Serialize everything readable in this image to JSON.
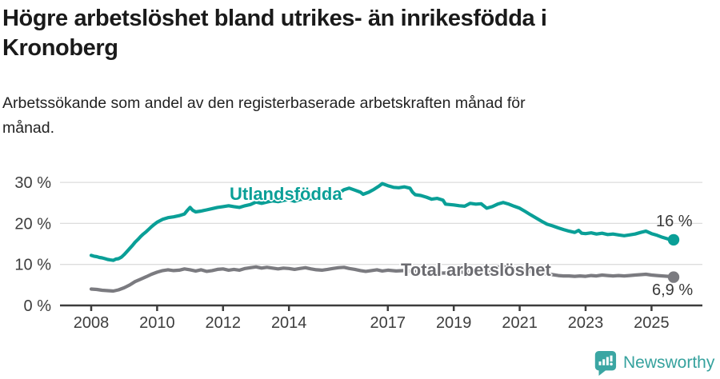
{
  "header": {
    "title": "Högre arbetslöshet bland utrikes- än inrikesfödda i\nKronoberg",
    "subtitle": "Arbetssökande som andel av den registerbaserade arbetskraften månad för\nmånad."
  },
  "footer": {
    "brand": "Newsworthy",
    "logo_icon": "newsworthy-pin-barchart-icon",
    "brand_color": "#36a29e"
  },
  "chart_data": {
    "type": "line",
    "title": "Högre arbetslöshet bland utrikes- än inrikesfödda i Kronoberg",
    "subtitle": "Arbetssökande som andel av den registerbaserade arbetskraften månad för månad.",
    "grid": true,
    "legend_position": "inline-labels",
    "x_axis": {
      "ticks": [
        2008,
        2010,
        2012,
        2014,
        2017,
        2019,
        2021,
        2023,
        2025
      ],
      "labels": [
        "2008",
        "2010",
        "2012",
        "2014",
        "2017",
        "2019",
        "2021",
        "2023",
        "2025"
      ],
      "range": [
        2007.1,
        2026.5
      ]
    },
    "y_axis": {
      "ticks": [
        0,
        10,
        20,
        30
      ],
      "labels": [
        "0 %",
        "10 %",
        "20 %",
        "30 %"
      ],
      "range": [
        0,
        31
      ]
    },
    "colors": {
      "grid": "#dcdcdc",
      "axis": "#3c3c3c",
      "tick_text": "#3d3d3d"
    },
    "series": [
      {
        "id": "utlandsfodda",
        "name": "Utlandsfödda",
        "color": "#0a9f97",
        "end_label": "16 %",
        "end_value": 16.0,
        "points": [
          [
            2008.0,
            12.2
          ],
          [
            2008.08,
            12.0
          ],
          [
            2008.17,
            11.9
          ],
          [
            2008.25,
            11.7
          ],
          [
            2008.33,
            11.6
          ],
          [
            2008.42,
            11.4
          ],
          [
            2008.5,
            11.2
          ],
          [
            2008.58,
            11.1
          ],
          [
            2008.67,
            11.0
          ],
          [
            2008.75,
            11.3
          ],
          [
            2008.83,
            11.4
          ],
          [
            2008.92,
            11.8
          ],
          [
            2009.0,
            12.4
          ],
          [
            2009.08,
            13.1
          ],
          [
            2009.17,
            13.9
          ],
          [
            2009.25,
            14.6
          ],
          [
            2009.33,
            15.4
          ],
          [
            2009.42,
            16.1
          ],
          [
            2009.5,
            16.8
          ],
          [
            2009.58,
            17.4
          ],
          [
            2009.67,
            18.0
          ],
          [
            2009.75,
            18.6
          ],
          [
            2009.83,
            19.2
          ],
          [
            2009.92,
            19.8
          ],
          [
            2010.0,
            20.3
          ],
          [
            2010.17,
            21.0
          ],
          [
            2010.33,
            21.4
          ],
          [
            2010.5,
            21.6
          ],
          [
            2010.67,
            21.9
          ],
          [
            2010.83,
            22.3
          ],
          [
            2010.92,
            23.2
          ],
          [
            2011.0,
            23.9
          ],
          [
            2011.08,
            23.2
          ],
          [
            2011.17,
            22.8
          ],
          [
            2011.33,
            23.0
          ],
          [
            2011.5,
            23.3
          ],
          [
            2011.67,
            23.6
          ],
          [
            2011.83,
            23.9
          ],
          [
            2012.0,
            24.1
          ],
          [
            2012.17,
            24.3
          ],
          [
            2012.33,
            24.1
          ],
          [
            2012.5,
            23.9
          ],
          [
            2012.67,
            24.3
          ],
          [
            2012.83,
            24.6
          ],
          [
            2013.0,
            25.2
          ],
          [
            2013.17,
            24.9
          ],
          [
            2013.33,
            25.2
          ],
          [
            2013.5,
            25.5
          ],
          [
            2013.67,
            25.3
          ],
          [
            2013.83,
            25.6
          ],
          [
            2014.0,
            25.8
          ],
          [
            2014.17,
            25.4
          ],
          [
            2014.33,
            25.8
          ],
          [
            2014.5,
            26.0
          ],
          [
            2014.67,
            26.0
          ],
          [
            2014.83,
            26.2
          ],
          [
            2015.0,
            26.4
          ],
          [
            2015.25,
            26.7
          ],
          [
            2015.5,
            27.3
          ],
          [
            2015.67,
            28.2
          ],
          [
            2015.83,
            28.6
          ],
          [
            2016.0,
            28.1
          ],
          [
            2016.17,
            27.6
          ],
          [
            2016.25,
            27.1
          ],
          [
            2016.42,
            27.6
          ],
          [
            2016.58,
            28.3
          ],
          [
            2016.75,
            29.2
          ],
          [
            2016.83,
            29.7
          ],
          [
            2017.0,
            29.2
          ],
          [
            2017.17,
            28.8
          ],
          [
            2017.33,
            28.7
          ],
          [
            2017.5,
            28.9
          ],
          [
            2017.67,
            28.6
          ],
          [
            2017.75,
            27.6
          ],
          [
            2017.83,
            27.0
          ],
          [
            2018.0,
            26.8
          ],
          [
            2018.17,
            26.4
          ],
          [
            2018.33,
            25.9
          ],
          [
            2018.5,
            26.1
          ],
          [
            2018.67,
            25.7
          ],
          [
            2018.75,
            24.7
          ],
          [
            2019.0,
            24.5
          ],
          [
            2019.17,
            24.3
          ],
          [
            2019.33,
            24.2
          ],
          [
            2019.5,
            24.9
          ],
          [
            2019.67,
            24.7
          ],
          [
            2019.83,
            24.8
          ],
          [
            2020.0,
            23.7
          ],
          [
            2020.17,
            24.1
          ],
          [
            2020.33,
            24.7
          ],
          [
            2020.5,
            25.1
          ],
          [
            2020.67,
            24.7
          ],
          [
            2020.83,
            24.2
          ],
          [
            2021.0,
            23.7
          ],
          [
            2021.17,
            22.9
          ],
          [
            2021.33,
            22.1
          ],
          [
            2021.5,
            21.3
          ],
          [
            2021.67,
            20.5
          ],
          [
            2021.83,
            19.8
          ],
          [
            2022.0,
            19.4
          ],
          [
            2022.17,
            18.9
          ],
          [
            2022.33,
            18.5
          ],
          [
            2022.5,
            18.1
          ],
          [
            2022.67,
            17.8
          ],
          [
            2022.79,
            18.3
          ],
          [
            2022.88,
            17.6
          ],
          [
            2023.0,
            17.5
          ],
          [
            2023.17,
            17.7
          ],
          [
            2023.33,
            17.4
          ],
          [
            2023.5,
            17.6
          ],
          [
            2023.67,
            17.3
          ],
          [
            2023.83,
            17.4
          ],
          [
            2024.0,
            17.2
          ],
          [
            2024.17,
            17.0
          ],
          [
            2024.33,
            17.2
          ],
          [
            2024.5,
            17.4
          ],
          [
            2024.67,
            17.8
          ],
          [
            2024.83,
            18.1
          ],
          [
            2025.0,
            17.5
          ],
          [
            2025.17,
            17.1
          ],
          [
            2025.33,
            16.6
          ],
          [
            2025.5,
            16.2
          ],
          [
            2025.67,
            16.0
          ]
        ]
      },
      {
        "id": "total-arbetsloshet",
        "name": "Total arbetslöshet",
        "color": "#7b7b80",
        "label_color": "#6b6b70",
        "end_label": "6,9 %",
        "end_value": 6.9,
        "points": [
          [
            2008.0,
            4.0
          ],
          [
            2008.17,
            3.9
          ],
          [
            2008.33,
            3.7
          ],
          [
            2008.5,
            3.6
          ],
          [
            2008.67,
            3.5
          ],
          [
            2008.83,
            3.8
          ],
          [
            2009.0,
            4.3
          ],
          [
            2009.17,
            5.0
          ],
          [
            2009.33,
            5.8
          ],
          [
            2009.5,
            6.4
          ],
          [
            2009.67,
            7.0
          ],
          [
            2009.83,
            7.6
          ],
          [
            2010.0,
            8.1
          ],
          [
            2010.17,
            8.5
          ],
          [
            2010.33,
            8.7
          ],
          [
            2010.5,
            8.5
          ],
          [
            2010.67,
            8.6
          ],
          [
            2010.83,
            8.9
          ],
          [
            2011.0,
            8.7
          ],
          [
            2011.17,
            8.4
          ],
          [
            2011.33,
            8.7
          ],
          [
            2011.5,
            8.3
          ],
          [
            2011.67,
            8.5
          ],
          [
            2011.83,
            8.8
          ],
          [
            2012.0,
            8.9
          ],
          [
            2012.17,
            8.6
          ],
          [
            2012.33,
            8.8
          ],
          [
            2012.5,
            8.6
          ],
          [
            2012.67,
            9.0
          ],
          [
            2012.83,
            9.2
          ],
          [
            2013.0,
            9.4
          ],
          [
            2013.17,
            9.1
          ],
          [
            2013.33,
            9.3
          ],
          [
            2013.5,
            9.1
          ],
          [
            2013.67,
            8.9
          ],
          [
            2013.83,
            9.1
          ],
          [
            2014.0,
            9.0
          ],
          [
            2014.17,
            8.8
          ],
          [
            2014.33,
            9.0
          ],
          [
            2014.5,
            9.2
          ],
          [
            2014.67,
            8.9
          ],
          [
            2014.83,
            8.7
          ],
          [
            2015.0,
            8.6
          ],
          [
            2015.17,
            8.8
          ],
          [
            2015.33,
            9.0
          ],
          [
            2015.5,
            9.2
          ],
          [
            2015.67,
            9.3
          ],
          [
            2015.83,
            9.0
          ],
          [
            2016.0,
            8.8
          ],
          [
            2016.17,
            8.5
          ],
          [
            2016.33,
            8.3
          ],
          [
            2016.5,
            8.5
          ],
          [
            2016.67,
            8.7
          ],
          [
            2016.83,
            8.4
          ],
          [
            2017.0,
            8.6
          ],
          [
            2017.25,
            8.4
          ],
          [
            2017.5,
            8.5
          ],
          [
            2017.75,
            8.3
          ],
          [
            2018.0,
            8.1
          ],
          [
            2018.33,
            8.0
          ],
          [
            2018.67,
            7.9
          ],
          [
            2019.0,
            8.0
          ],
          [
            2019.33,
            8.1
          ],
          [
            2019.67,
            8.2
          ],
          [
            2020.0,
            8.3
          ],
          [
            2020.25,
            9.2
          ],
          [
            2020.5,
            9.5
          ],
          [
            2020.75,
            9.1
          ],
          [
            2021.0,
            8.7
          ],
          [
            2021.33,
            8.3
          ],
          [
            2021.67,
            7.9
          ],
          [
            2022.0,
            7.5
          ],
          [
            2022.17,
            7.3
          ],
          [
            2022.33,
            7.2
          ],
          [
            2022.5,
            7.2
          ],
          [
            2022.67,
            7.1
          ],
          [
            2022.83,
            7.2
          ],
          [
            2023.0,
            7.1
          ],
          [
            2023.17,
            7.3
          ],
          [
            2023.33,
            7.2
          ],
          [
            2023.5,
            7.4
          ],
          [
            2023.67,
            7.3
          ],
          [
            2023.83,
            7.2
          ],
          [
            2024.0,
            7.3
          ],
          [
            2024.17,
            7.2
          ],
          [
            2024.33,
            7.3
          ],
          [
            2024.5,
            7.4
          ],
          [
            2024.67,
            7.5
          ],
          [
            2024.83,
            7.6
          ],
          [
            2025.0,
            7.4
          ],
          [
            2025.17,
            7.3
          ],
          [
            2025.33,
            7.2
          ],
          [
            2025.5,
            7.1
          ],
          [
            2025.67,
            6.9
          ]
        ]
      }
    ]
  }
}
